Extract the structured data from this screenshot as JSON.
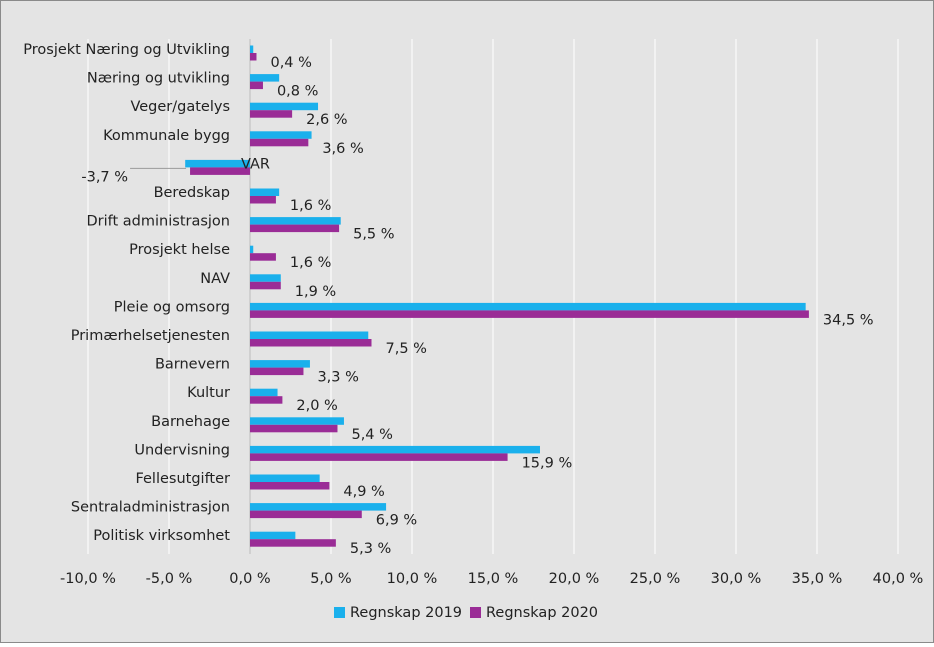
{
  "chart_data": {
    "type": "bar",
    "orientation": "horizontal",
    "title": "",
    "xlabel": "",
    "ylabel": "",
    "xlim": [
      -10,
      40
    ],
    "grid": true,
    "legend_position": "bottom",
    "x_ticks": [
      "-10,0 %",
      "-5,0 %",
      "0,0 %",
      "5,0 %",
      "10,0 %",
      "15,0 %",
      "20,0 %",
      "25,0 %",
      "30,0 %",
      "35,0 %",
      "40,0 %"
    ],
    "categories": [
      "Prosjekt Næring og Utvikling",
      "Næring og utvikling",
      "Veger/gatelys",
      "Kommunale bygg",
      "VAR",
      "Beredskap",
      "Drift administrasjon",
      "Prosjekt helse",
      "NAV",
      "Pleie og omsorg",
      "Primærhelsetjenesten",
      "Barnevern",
      "Kultur",
      "Barnehage",
      "Undervisning",
      "Fellesutgifter",
      "Sentraladministrasjon",
      "Politisk virksomhet"
    ],
    "series": [
      {
        "name": "Regnskap 2019",
        "color": "#1ab0ec",
        "values": [
          0.2,
          1.8,
          4.2,
          3.8,
          -4.0,
          1.8,
          5.6,
          0.2,
          1.9,
          34.3,
          7.3,
          3.7,
          1.7,
          5.8,
          17.9,
          4.3,
          8.4,
          2.8
        ]
      },
      {
        "name": "Regnskap 2020",
        "color": "#9a2c96",
        "values": [
          0.4,
          0.8,
          2.6,
          3.6,
          -3.7,
          1.6,
          5.5,
          1.6,
          1.9,
          34.5,
          7.5,
          3.3,
          2.0,
          5.4,
          15.9,
          4.9,
          6.9,
          5.3
        ]
      }
    ],
    "data_labels": [
      "0,4 %",
      "0,8 %",
      "2,6 %",
      "3,6 %",
      "-3,7 %",
      "1,6 %",
      "5,5 %",
      "1,6 %",
      "1,9 %",
      "34,5 %",
      "7,5 %",
      "3,3 %",
      "2,0 %",
      "5,4 %",
      "15,9 %",
      "4,9 %",
      "6,9 %",
      "5,3 %"
    ]
  }
}
